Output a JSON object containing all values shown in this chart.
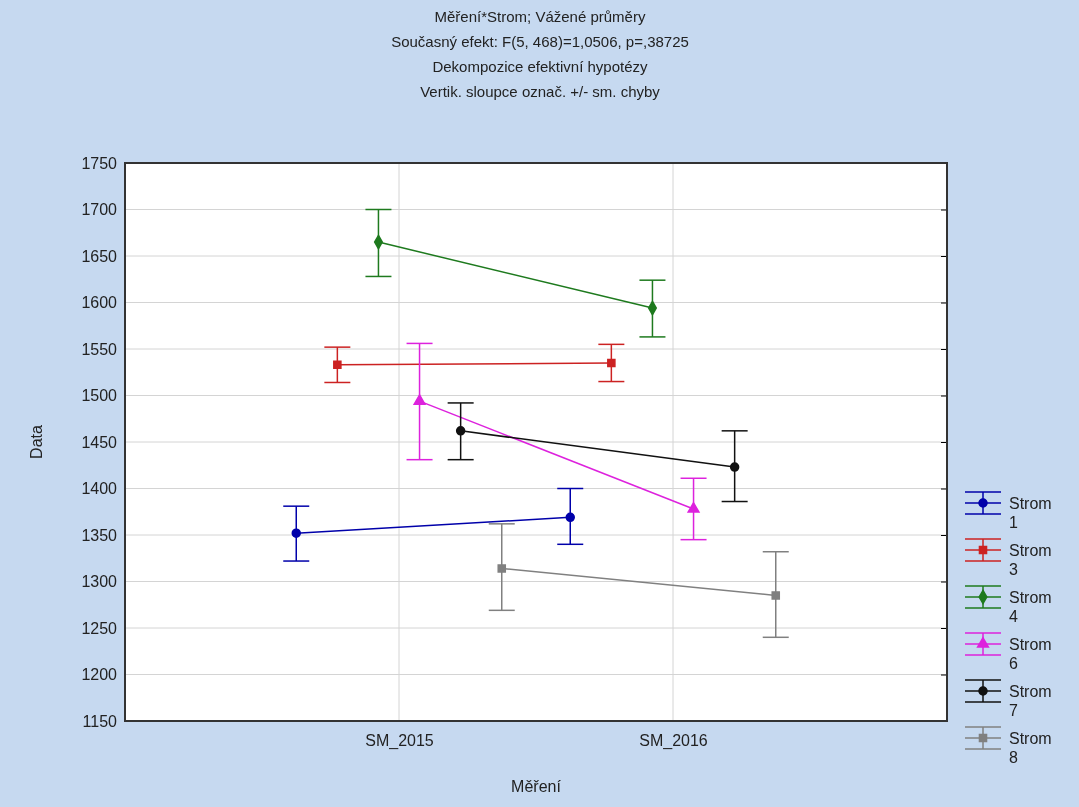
{
  "chart_data": {
    "type": "line",
    "title": "Měření*Strom; Vážené průměry",
    "subtitle": "Současný efekt: F(5, 468)=1,0506, p=,38725",
    "annotations": [
      "Dekompozice efektivní hypotézy",
      "Vertik. sloupce označ. +/- sm. chyby"
    ],
    "xlabel": "Měření",
    "ylabel": "Data",
    "categories": [
      "SM_2015",
      "SM_2016"
    ],
    "ylim": [
      1150,
      1750
    ],
    "yticks": [
      1150,
      1200,
      1250,
      1300,
      1350,
      1400,
      1450,
      1500,
      1550,
      1600,
      1650,
      1700,
      1750
    ],
    "grid": true,
    "legend": "right",
    "series": [
      {
        "name": "Strom 1",
        "color": "#0000aa",
        "marker": "circle",
        "values": [
          1352,
          1369
        ],
        "errors": [
          [
            1322,
            1381
          ],
          [
            1340,
            1400
          ]
        ]
      },
      {
        "name": "Strom 3",
        "color": "#cc2222",
        "marker": "square",
        "values": [
          1533,
          1535
        ],
        "errors": [
          [
            1514,
            1552
          ],
          [
            1515,
            1555
          ]
        ]
      },
      {
        "name": "Strom 4",
        "color": "#1e7a1e",
        "marker": "diamond",
        "values": [
          1665,
          1594
        ],
        "errors": [
          [
            1628,
            1700
          ],
          [
            1563,
            1624
          ]
        ]
      },
      {
        "name": "Strom 6",
        "color": "#dd22dd",
        "marker": "triangle",
        "values": [
          1494,
          1378
        ],
        "errors": [
          [
            1431,
            1556
          ],
          [
            1345,
            1411
          ]
        ]
      },
      {
        "name": "Strom 7",
        "color": "#111111",
        "marker": "circle",
        "values": [
          1462,
          1423
        ],
        "errors": [
          [
            1431,
            1492
          ],
          [
            1386,
            1462
          ]
        ]
      },
      {
        "name": "Strom 8",
        "color": "#808080",
        "marker": "square",
        "values": [
          1314,
          1285
        ],
        "errors": [
          [
            1269,
            1362
          ],
          [
            1240,
            1332
          ]
        ]
      }
    ]
  }
}
